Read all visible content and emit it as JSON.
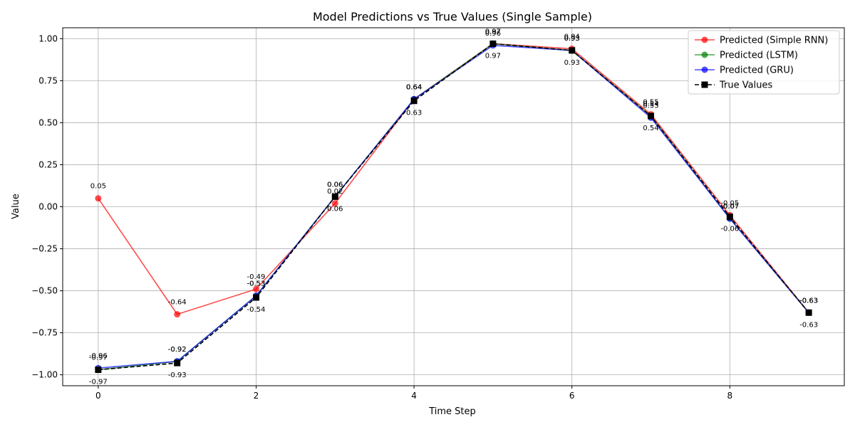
{
  "chart_data": {
    "type": "line",
    "title": "Model Predictions vs True Values (Single Sample)",
    "xlabel": "Time Step",
    "ylabel": "Value",
    "x": [
      0,
      1,
      2,
      3,
      4,
      5,
      6,
      7,
      8,
      9
    ],
    "xlim": [
      -0.45,
      9.45
    ],
    "ylim": [
      -1.065,
      1.065
    ],
    "xticks": [
      0,
      2,
      4,
      6,
      8
    ],
    "yticks": [
      -1.0,
      -0.75,
      -0.5,
      -0.25,
      0.0,
      0.25,
      0.5,
      0.75,
      1.0
    ],
    "xtick_labels": [
      "0",
      "2",
      "4",
      "6",
      "8"
    ],
    "ytick_labels": [
      "−1.00",
      "−0.75",
      "−0.50",
      "−0.25",
      "0.00",
      "0.25",
      "0.50",
      "0.75",
      "1.00"
    ],
    "grid": true,
    "legend_position": "top-right",
    "series": [
      {
        "name": "Predicted (Simple RNN)",
        "color": "#ff0000",
        "marker": "circle",
        "dash": false,
        "values": [
          0.05,
          -0.64,
          -0.49,
          0.02,
          0.64,
          0.97,
          0.94,
          0.55,
          -0.05,
          -0.63
        ],
        "labels": [
          "0.05",
          "-0.64",
          "-0.49",
          "0.02",
          "0.64",
          "0.97",
          "0.94",
          "0.55",
          "-0.05",
          "-0.63"
        ]
      },
      {
        "name": "Predicted (LSTM)",
        "color": "#008000",
        "marker": "circle",
        "dash": false,
        "values": [
          -0.97,
          -0.92,
          -0.53,
          0.06,
          0.64,
          0.97,
          0.93,
          0.54,
          -0.07,
          -0.63
        ],
        "labels": [
          "-0.97",
          "-0.92",
          "-0.53",
          "0.06",
          "0.64",
          "0.97",
          "0.93",
          "0.54",
          "-0.07",
          "-0.63"
        ]
      },
      {
        "name": "Predicted (GRU)",
        "color": "#0000ff",
        "marker": "circle",
        "dash": false,
        "values": [
          -0.96,
          -0.92,
          -0.53,
          0.06,
          0.64,
          0.96,
          0.93,
          0.53,
          -0.07,
          -0.63
        ],
        "labels": [
          "-0.96",
          "-0.92",
          "-0.53",
          "0.06",
          "0.64",
          "0.96",
          "0.93",
          "0.53",
          "-0.07",
          "-0.63"
        ]
      },
      {
        "name": "True Values",
        "color": "#000000",
        "marker": "square",
        "dash": true,
        "values": [
          -0.97,
          -0.93,
          -0.54,
          0.06,
          0.63,
          0.97,
          0.93,
          0.54,
          -0.06,
          -0.63
        ],
        "labels": [
          "-0.97",
          "-0.93",
          "-0.54",
          "0.06",
          "0.63",
          "0.97",
          "0.93",
          "0.54",
          "-0.06",
          "-0.63"
        ]
      }
    ]
  }
}
